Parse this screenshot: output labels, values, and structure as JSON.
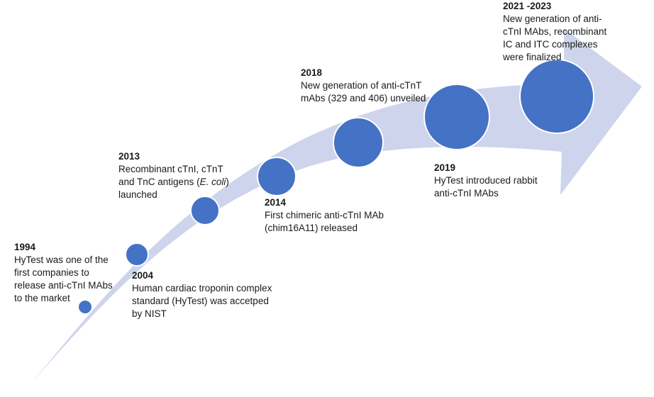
{
  "colors": {
    "arrow": "#cdd4ec",
    "milestone": "#4472c4",
    "milestone_stroke": "#ffffff"
  },
  "events": [
    {
      "year": "1994",
      "text": "HyTest was one of the first companies to release anti-cTnI MAbs to the market"
    },
    {
      "year": "2004",
      "text": "Human cardiac troponin complex standard (HyTest) was accetped by NIST"
    },
    {
      "year": "2013",
      "text_before": "Recombinant cTnI, cTnT and TnC antigens (",
      "text_italic": "E. coli",
      "text_after": ") launched"
    },
    {
      "year": "2014",
      "text": "First chimeric anti-cTnI MAb (chim16A11) released"
    },
    {
      "year": "2018",
      "text": "New generation of anti-cTnT mAbs (329 and 406) unveiled"
    },
    {
      "year": "2019",
      "text": "HyTest introduced rabbit anti-cTnI MAbs"
    },
    {
      "year": "2021 -2023",
      "text": "New generation of anti-cTnI MAbs, recombinant IC and ITC complexes were finalized"
    }
  ]
}
